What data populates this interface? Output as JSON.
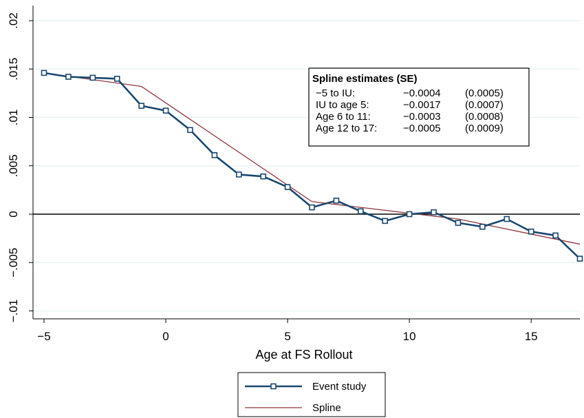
{
  "chart_data": {
    "type": "line",
    "xlabel": "Age at FS Rollout",
    "ylabel": "",
    "xlim": [
      -5,
      17
    ],
    "ylim": [
      -0.011,
      0.02
    ],
    "x_ticks": [
      -5,
      0,
      5,
      10,
      15
    ],
    "x_tick_labels": [
      "−5",
      "0",
      "5",
      "10",
      "15"
    ],
    "y_ticks": [
      0.02,
      0.015,
      0.01,
      0.005,
      0,
      -0.005,
      -0.01
    ],
    "y_tick_labels": [
      ".02",
      ".015",
      ".01",
      ".005",
      "0",
      "−.005",
      "−.01"
    ],
    "grid": true,
    "reference_line_y": 0,
    "legend_position": "bottom",
    "series": [
      {
        "name": "Event study",
        "color": "#1a476f",
        "marker": "hollow-square",
        "x": [
          -5,
          -4,
          -3,
          -2,
          -1,
          0,
          1,
          2,
          3,
          4,
          5,
          6,
          7,
          8,
          9,
          10,
          11,
          12,
          13,
          14,
          15,
          16,
          17
        ],
        "y": [
          0.0146,
          0.0142,
          0.0141,
          0.014,
          0.0112,
          0.0107,
          0.0087,
          0.0061,
          0.0041,
          0.0039,
          0.0028,
          0.0007,
          0.0014,
          0.0003,
          -0.0007,
          0.0,
          0.0002,
          -0.0009,
          -0.0013,
          -0.0005,
          -0.0018,
          -0.0022,
          -0.0046
        ]
      },
      {
        "name": "Spline",
        "color": "#90353b",
        "marker": "none",
        "x": [
          -5,
          -1,
          6,
          12,
          17
        ],
        "y": [
          0.0146,
          0.0132,
          0.0013,
          -0.0005,
          -0.0031
        ]
      }
    ],
    "annotation_box": {
      "title": "Spline estimates (SE)",
      "rows": [
        {
          "label": "−5 to IU:",
          "estimate": "−0.0004",
          "se": "(0.0005)"
        },
        {
          "label": "IU to age 5:",
          "estimate": "−0.0017",
          "se": "(0.0007)"
        },
        {
          "label": "Age 6 to 11:",
          "estimate": "−0.0003",
          "se": "(0.0008)"
        },
        {
          "label": "Age 12 to 17:",
          "estimate": "−0.0005",
          "se": "(0.0009)"
        }
      ]
    }
  }
}
